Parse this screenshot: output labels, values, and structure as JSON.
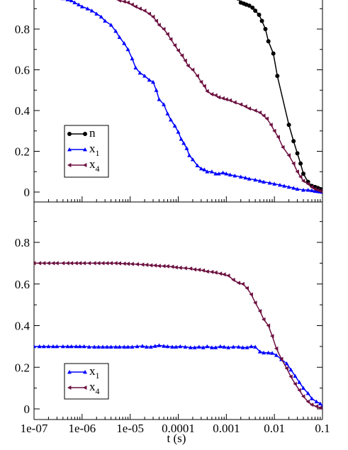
{
  "colors": {
    "n": "#000000",
    "x1": "#0000ff",
    "x4": "#6b0f3f",
    "axis": "#000000"
  },
  "chart_data": [
    {
      "type": "line",
      "xscale": "log",
      "xlim": [
        1e-07,
        0.1
      ],
      "ylim": [
        -0.05,
        0.95
      ],
      "yticks": [
        0,
        0.2,
        0.4,
        0.6,
        0.8
      ],
      "ytick_labels": [
        "0",
        "0.2",
        "0.4",
        "0.6",
        "0.8"
      ],
      "xlabel": "",
      "ylabel": "",
      "legend_position": "lower-left",
      "series": [
        {
          "name": "n",
          "color": "#000000",
          "marker": "circle",
          "x": [
            0.00175,
            0.002,
            0.0023,
            0.0026,
            0.003,
            0.0035,
            0.004,
            0.0048,
            0.0055,
            0.0065,
            0.0075,
            0.0095,
            0.0115,
            0.02,
            0.025,
            0.03,
            0.035,
            0.04,
            0.05,
            0.06,
            0.07,
            0.08,
            0.09,
            0.1
          ],
          "y": [
            0.95,
            0.93,
            0.925,
            0.92,
            0.915,
            0.905,
            0.89,
            0.87,
            0.84,
            0.8,
            0.74,
            0.68,
            0.57,
            0.33,
            0.25,
            0.19,
            0.14,
            0.09,
            0.05,
            0.03,
            0.025,
            0.02,
            0.015,
            0.012
          ]
        },
        {
          "name": "x1",
          "color": "#0000ff",
          "marker": "triangle-up",
          "x": [
            4e-07,
            5e-07,
            6e-07,
            7e-07,
            8.5e-07,
            1e-06,
            1.3e-06,
            1.6e-06,
            2e-06,
            2.5e-06,
            3e-06,
            4e-06,
            5e-06,
            6e-06,
            7.5e-06,
            9e-06,
            1.1e-05,
            1.3e-05,
            1.6e-05,
            2e-05,
            2.5e-05,
            3e-05,
            3.5e-05,
            4e-05,
            5e-05,
            6e-05,
            7e-05,
            8.5e-05,
            0.0001,
            0.000115,
            0.00013,
            0.00015,
            0.00017,
            0.0002,
            0.00025,
            0.0003,
            0.00035,
            0.0004,
            0.0005,
            0.0006,
            0.0007,
            0.00085,
            0.001,
            0.0012,
            0.0015,
            0.002,
            0.0025,
            0.003,
            0.004,
            0.005,
            0.006,
            0.008,
            0.01,
            0.013,
            0.016,
            0.02,
            0.025,
            0.03,
            0.04,
            0.05,
            0.06,
            0.07,
            0.08,
            0.09,
            0.1
          ],
          "y": [
            0.95,
            0.945,
            0.94,
            0.93,
            0.92,
            0.91,
            0.9,
            0.89,
            0.875,
            0.86,
            0.84,
            0.82,
            0.79,
            0.76,
            0.73,
            0.7,
            0.655,
            0.61,
            0.585,
            0.57,
            0.55,
            0.54,
            0.5,
            0.455,
            0.43,
            0.385,
            0.355,
            0.325,
            0.295,
            0.26,
            0.24,
            0.215,
            0.18,
            0.16,
            0.13,
            0.115,
            0.11,
            0.1,
            0.1,
            0.09,
            0.09,
            0.095,
            0.09,
            0.085,
            0.08,
            0.075,
            0.07,
            0.065,
            0.06,
            0.055,
            0.05,
            0.045,
            0.04,
            0.035,
            0.03,
            0.025,
            0.02,
            0.015,
            0.01,
            0.01,
            0.008,
            0.005,
            0.003,
            0.002,
            0.0
          ]
        },
        {
          "name": "x4",
          "color": "#6b0f3f",
          "marker": "triangle-left",
          "x": [
            5e-06,
            6e-06,
            7.5e-06,
            9e-06,
            1.1e-05,
            1.3e-05,
            1.6e-05,
            2e-05,
            2.5e-05,
            3e-05,
            3.5e-05,
            4e-05,
            5e-05,
            6e-05,
            7e-05,
            8.5e-05,
            0.0001,
            0.00012,
            0.00014,
            0.00016,
            0.0002,
            0.00025,
            0.0003,
            0.00035,
            0.0004,
            0.0005,
            0.0006,
            0.0007,
            0.00085,
            0.001,
            0.0012,
            0.0015,
            0.002,
            0.0025,
            0.003,
            0.004,
            0.005,
            0.006,
            0.007,
            0.0085,
            0.01,
            0.012,
            0.015,
            0.02,
            0.025,
            0.03,
            0.035,
            0.04,
            0.05,
            0.06,
            0.07,
            0.08,
            0.09,
            0.1
          ],
          "y": [
            0.95,
            0.94,
            0.935,
            0.93,
            0.92,
            0.91,
            0.9,
            0.89,
            0.875,
            0.86,
            0.84,
            0.82,
            0.8,
            0.775,
            0.75,
            0.72,
            0.695,
            0.67,
            0.645,
            0.62,
            0.6,
            0.57,
            0.54,
            0.52,
            0.495,
            0.48,
            0.475,
            0.465,
            0.46,
            0.455,
            0.45,
            0.44,
            0.43,
            0.42,
            0.41,
            0.4,
            0.39,
            0.375,
            0.36,
            0.33,
            0.3,
            0.27,
            0.22,
            0.18,
            0.14,
            0.1,
            0.075,
            0.055,
            0.04,
            0.025,
            0.015,
            0.01,
            0.005,
            0.002
          ]
        }
      ]
    },
    {
      "type": "line",
      "xscale": "log",
      "xlim": [
        1e-07,
        0.1
      ],
      "ylim": [
        -0.05,
        0.95
      ],
      "yticks": [
        0,
        0.2,
        0.4,
        0.6,
        0.8
      ],
      "ytick_labels": [
        "0",
        "0.2",
        "0.4",
        "0.6",
        "0.8"
      ],
      "xticks": [
        1e-07,
        1e-06,
        1e-05,
        0.0001,
        0.001,
        0.01,
        0.1
      ],
      "xtick_labels": [
        "1e-07",
        "1e-06",
        "1e-05",
        "0.0001",
        "0.001",
        "0.01",
        "0.1"
      ],
      "xlabel": "t (s)",
      "ylabel": "",
      "legend_position": "lower-left",
      "series": [
        {
          "name": "x1",
          "color": "#0000ff",
          "marker": "triangle-up",
          "x": [
            1e-07,
            1.3e-07,
            1.6e-07,
            2e-07,
            2.5e-07,
            3e-07,
            4e-07,
            5e-07,
            6e-07,
            7.5e-07,
            9e-07,
            1.1e-06,
            1.4e-06,
            1.8e-06,
            2.2e-06,
            2.7e-06,
            3.3e-06,
            4e-06,
            5e-06,
            6e-06,
            7.5e-06,
            9e-06,
            1.1e-05,
            1.4e-05,
            1.8e-05,
            2.2e-05,
            2.7e-05,
            3.3e-05,
            4e-05,
            5e-05,
            6e-05,
            7.5e-05,
            9e-05,
            0.00011,
            0.00014,
            0.00018,
            0.00022,
            0.00027,
            0.00033,
            0.0004,
            0.0005,
            0.0006,
            0.00075,
            0.0009,
            0.0011,
            0.0014,
            0.0018,
            0.0022,
            0.0027,
            0.0033,
            0.004,
            0.005,
            0.006,
            0.0075,
            0.009,
            0.011,
            0.014,
            0.018,
            0.022,
            0.027,
            0.033,
            0.04,
            0.05,
            0.06,
            0.075,
            0.09,
            0.1
          ],
          "y": [
            0.3,
            0.3,
            0.3,
            0.3,
            0.3,
            0.3,
            0.3,
            0.3,
            0.3,
            0.3,
            0.3,
            0.3,
            0.298,
            0.298,
            0.298,
            0.298,
            0.298,
            0.298,
            0.298,
            0.298,
            0.298,
            0.298,
            0.298,
            0.3,
            0.302,
            0.298,
            0.298,
            0.302,
            0.305,
            0.302,
            0.3,
            0.298,
            0.298,
            0.3,
            0.298,
            0.295,
            0.295,
            0.298,
            0.295,
            0.3,
            0.295,
            0.295,
            0.3,
            0.298,
            0.295,
            0.298,
            0.298,
            0.295,
            0.295,
            0.3,
            0.298,
            0.275,
            0.27,
            0.27,
            0.268,
            0.258,
            0.238,
            0.218,
            0.188,
            0.158,
            0.128,
            0.1,
            0.075,
            0.05,
            0.035,
            0.025,
            0.015
          ]
        },
        {
          "name": "x4",
          "color": "#6b0f3f",
          "marker": "triangle-left",
          "x": [
            1e-07,
            1.3e-07,
            1.6e-07,
            2e-07,
            2.5e-07,
            3e-07,
            4e-07,
            5e-07,
            6e-07,
            7.5e-07,
            9e-07,
            1.1e-06,
            1.4e-06,
            1.8e-06,
            2.2e-06,
            2.7e-06,
            3.3e-06,
            4e-06,
            5e-06,
            6e-06,
            7.5e-06,
            9e-06,
            1.1e-05,
            1.4e-05,
            1.8e-05,
            2.2e-05,
            2.7e-05,
            3.3e-05,
            4e-05,
            5e-05,
            6e-05,
            7.5e-05,
            9e-05,
            0.00011,
            0.00014,
            0.00018,
            0.00022,
            0.00027,
            0.00033,
            0.0004,
            0.0005,
            0.0006,
            0.00075,
            0.0009,
            0.0011,
            0.0014,
            0.0018,
            0.0022,
            0.0027,
            0.0033,
            0.004,
            0.005,
            0.006,
            0.0075,
            0.009,
            0.011,
            0.014,
            0.018,
            0.022,
            0.027,
            0.033,
            0.04,
            0.05,
            0.06,
            0.075,
            0.09,
            0.1
          ],
          "y": [
            0.7,
            0.7,
            0.7,
            0.7,
            0.7,
            0.7,
            0.7,
            0.7,
            0.7,
            0.7,
            0.7,
            0.7,
            0.7,
            0.7,
            0.7,
            0.7,
            0.7,
            0.7,
            0.7,
            0.699,
            0.698,
            0.697,
            0.696,
            0.695,
            0.693,
            0.692,
            0.69,
            0.689,
            0.687,
            0.686,
            0.685,
            0.683,
            0.68,
            0.678,
            0.676,
            0.674,
            0.67,
            0.668,
            0.665,
            0.66,
            0.658,
            0.655,
            0.65,
            0.646,
            0.64,
            0.62,
            0.605,
            0.6,
            0.58,
            0.55,
            0.51,
            0.47,
            0.43,
            0.4,
            0.35,
            0.29,
            0.24,
            0.195,
            0.155,
            0.12,
            0.09,
            0.06,
            0.035,
            0.02,
            0.012,
            0.006,
            0.003
          ]
        }
      ]
    }
  ],
  "legends": [
    {
      "items": [
        {
          "key": "n",
          "label": "n",
          "sub": ""
        },
        {
          "key": "x1",
          "label": "x",
          "sub": "1"
        },
        {
          "key": "x4",
          "label": "x",
          "sub": "4"
        }
      ]
    },
    {
      "items": [
        {
          "key": "x1",
          "label": "x",
          "sub": "1"
        },
        {
          "key": "x4",
          "label": "x",
          "sub": "4"
        }
      ]
    }
  ]
}
